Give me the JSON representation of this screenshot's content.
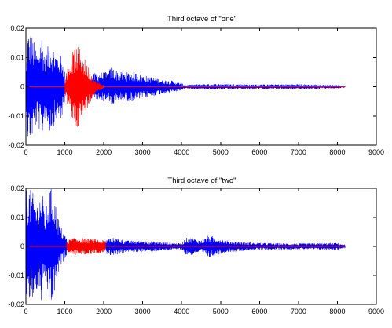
{
  "figure": {
    "background": "#ffffff"
  },
  "chart_data": [
    {
      "type": "line",
      "title": "Third octave of \"one\"",
      "xlabel": "",
      "ylabel": "",
      "xlim": [
        0,
        9000
      ],
      "ylim": [
        -0.02,
        0.02
      ],
      "xticks": [
        0,
        1000,
        2000,
        3000,
        4000,
        5000,
        6000,
        7000,
        8000,
        9000
      ],
      "yticks": [
        -0.02,
        -0.01,
        0,
        0.01,
        0.02
      ],
      "xtick_labels": [
        "0",
        "1000",
        "2000",
        "3000",
        "4000",
        "5000",
        "6000",
        "7000",
        "8000",
        "9000"
      ],
      "ytick_labels": [
        "-0.02",
        "-0.01",
        "0",
        "0.01",
        "0.02"
      ],
      "grid": false,
      "legend": "none",
      "series": [
        {
          "color": "#0000ff",
          "style": "line",
          "envelope": [
            [
              0,
              0.003
            ],
            [
              50,
              0.019
            ],
            [
              150,
              0.018
            ],
            [
              300,
              0.012
            ],
            [
              400,
              0.019
            ],
            [
              500,
              0.01
            ],
            [
              600,
              0.016
            ],
            [
              700,
              0.014
            ],
            [
              800,
              0.011
            ],
            [
              900,
              0.012
            ],
            [
              1000,
              0.006
            ],
            [
              1100,
              0.003
            ],
            [
              1700,
              0.004
            ],
            [
              1800,
              0.005
            ],
            [
              2000,
              0.005
            ],
            [
              2100,
              0.005
            ],
            [
              2200,
              0.007
            ],
            [
              2400,
              0.005
            ],
            [
              2600,
              0.005
            ],
            [
              2800,
              0.005
            ],
            [
              3000,
              0.004
            ],
            [
              3200,
              0.0035
            ],
            [
              3500,
              0.0025
            ],
            [
              3800,
              0.002
            ],
            [
              4000,
              0.0012
            ],
            [
              4100,
              0.0006
            ],
            [
              4400,
              0.0009
            ],
            [
              5000,
              0.001
            ],
            [
              6000,
              0.0008
            ],
            [
              7000,
              0.0009
            ],
            [
              8000,
              0.0006
            ],
            [
              8200,
              0.0003
            ]
          ],
          "segments": [
            [
              0,
              1000
            ],
            [
              1700,
              8200
            ]
          ]
        },
        {
          "color": "#ff0000",
          "style": "line",
          "envelope": [
            [
              1000,
              0.003
            ],
            [
              1100,
              0.008
            ],
            [
              1200,
              0.012
            ],
            [
              1300,
              0.014
            ],
            [
              1400,
              0.013
            ],
            [
              1500,
              0.01
            ],
            [
              1600,
              0.007
            ],
            [
              1700,
              0.004
            ],
            [
              1800,
              0.002
            ],
            [
              2000,
              0.0006
            ]
          ],
          "segments": [
            [
              1000,
              2000
            ]
          ]
        },
        {
          "color": "#ff0000",
          "style": "baseline",
          "x": [
            0,
            8200
          ],
          "y": [
            0,
            0
          ]
        }
      ]
    },
    {
      "type": "line",
      "title": "Third octave of \"two\"",
      "xlabel": "",
      "ylabel": "",
      "xlim": [
        0,
        9000
      ],
      "ylim": [
        -0.02,
        0.02
      ],
      "xticks": [
        0,
        1000,
        2000,
        3000,
        4000,
        5000,
        6000,
        7000,
        8000,
        9000
      ],
      "yticks": [
        -0.02,
        -0.01,
        0,
        0.01,
        0.02
      ],
      "xtick_labels": [
        "0",
        "1000",
        "2000",
        "3000",
        "4000",
        "5000",
        "6000",
        "7000",
        "8000",
        "9000"
      ],
      "ytick_labels": [
        "-0.02",
        "-0.01",
        "0",
        "0.01",
        "0.02"
      ],
      "grid": false,
      "legend": "none",
      "series": [
        {
          "color": "#0000ff",
          "style": "line",
          "envelope": [
            [
              0,
              0.02
            ],
            [
              100,
              0.02
            ],
            [
              200,
              0.018
            ],
            [
              300,
              0.015
            ],
            [
              400,
              0.02
            ],
            [
              500,
              0.012
            ],
            [
              600,
              0.02
            ],
            [
              700,
              0.02
            ],
            [
              800,
              0.012
            ],
            [
              900,
              0.007
            ],
            [
              1000,
              0.004
            ],
            [
              1100,
              0.002
            ],
            [
              2050,
              0.002
            ],
            [
              2100,
              0.003
            ],
            [
              2300,
              0.003
            ],
            [
              2600,
              0.002
            ],
            [
              3000,
              0.002
            ],
            [
              3500,
              0.0015
            ],
            [
              4000,
              0.001
            ],
            [
              4100,
              0.003
            ],
            [
              4300,
              0.003
            ],
            [
              4500,
              0.002
            ],
            [
              4700,
              0.004
            ],
            [
              4900,
              0.003
            ],
            [
              5200,
              0.002
            ],
            [
              5600,
              0.0015
            ],
            [
              6000,
              0.0012
            ],
            [
              7000,
              0.001
            ],
            [
              8000,
              0.0012
            ],
            [
              8200,
              0.0006
            ]
          ],
          "segments": [
            [
              0,
              1050
            ],
            [
              2050,
              8200
            ]
          ]
        },
        {
          "color": "#ff0000",
          "style": "line",
          "envelope": [
            [
              1050,
              0.002
            ],
            [
              1200,
              0.003
            ],
            [
              1400,
              0.003
            ],
            [
              1600,
              0.0028
            ],
            [
              1800,
              0.0025
            ],
            [
              2050,
              0.002
            ]
          ],
          "segments": [
            [
              1050,
              2050
            ]
          ]
        },
        {
          "color": "#ff0000",
          "style": "baseline",
          "x": [
            0,
            8200
          ],
          "y": [
            0,
            0
          ]
        }
      ]
    }
  ]
}
